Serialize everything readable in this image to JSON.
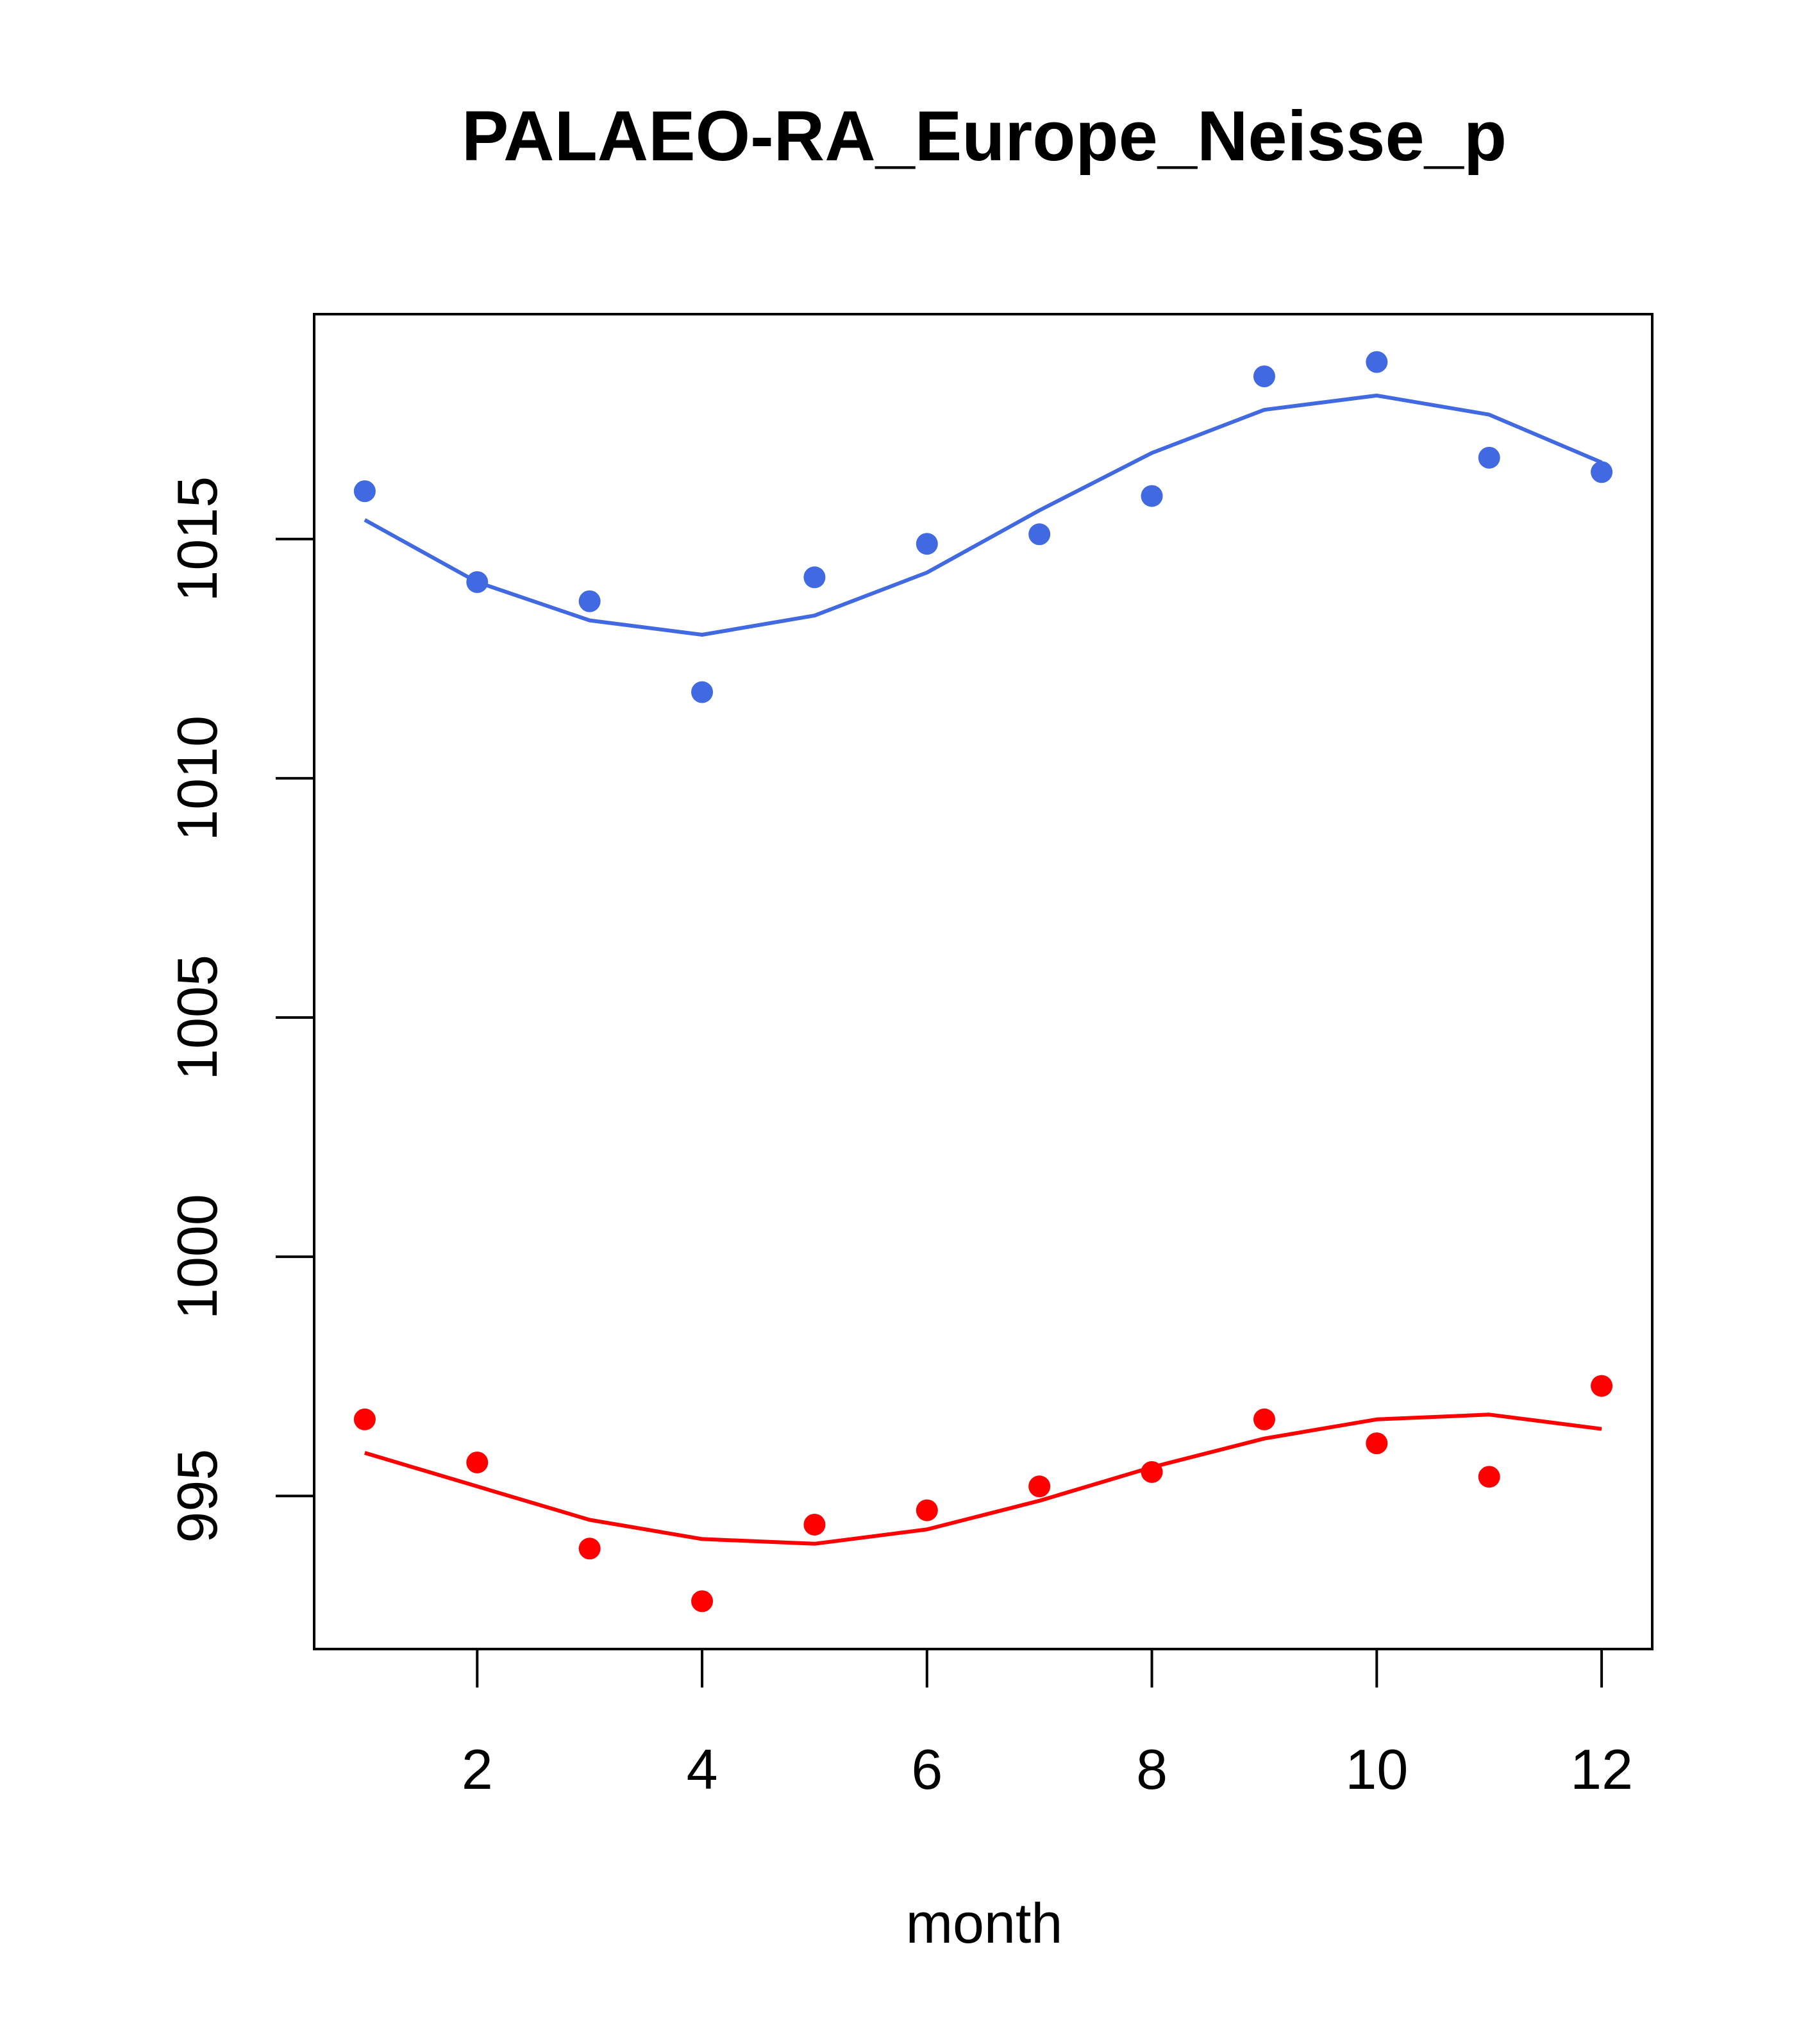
{
  "chart_data": {
    "type": "scatter",
    "title": "PALAEO-RA_Europe_Neisse_p",
    "xlabel": "month",
    "ylabel": "",
    "xlim": [
      0.55,
      12.45
    ],
    "ylim": [
      991.8,
      1019.7
    ],
    "x_ticks": [
      2,
      4,
      6,
      8,
      10,
      12
    ],
    "y_ticks": [
      995,
      1000,
      1005,
      1010,
      1015
    ],
    "grid": false,
    "series": [
      {
        "color": "#4169E1",
        "x": [
          1,
          2,
          3,
          4,
          5,
          6,
          7,
          8,
          9,
          10,
          11,
          12
        ],
        "points": [
          1016.0,
          1014.1,
          1013.7,
          1011.8,
          1014.2,
          1014.9,
          1015.1,
          1015.9,
          1018.4,
          1018.7,
          1016.7,
          1016.4
        ],
        "fit": [
          1015.4,
          1014.1,
          1013.3,
          1013.0,
          1013.4,
          1014.3,
          1015.6,
          1016.8,
          1017.7,
          1018.0,
          1017.6,
          1016.6
        ]
      },
      {
        "color": "#FF0000",
        "x": [
          1,
          2,
          3,
          4,
          5,
          6,
          7,
          8,
          9,
          10,
          11,
          12
        ],
        "points": [
          996.6,
          995.7,
          993.9,
          992.8,
          994.4,
          994.7,
          995.2,
          995.5,
          996.6,
          996.1,
          995.4,
          997.3
        ],
        "fit": [
          995.9,
          995.2,
          994.5,
          994.1,
          994.0,
          994.3,
          994.9,
          995.6,
          996.2,
          996.6,
          996.7,
          996.4
        ]
      }
    ]
  }
}
